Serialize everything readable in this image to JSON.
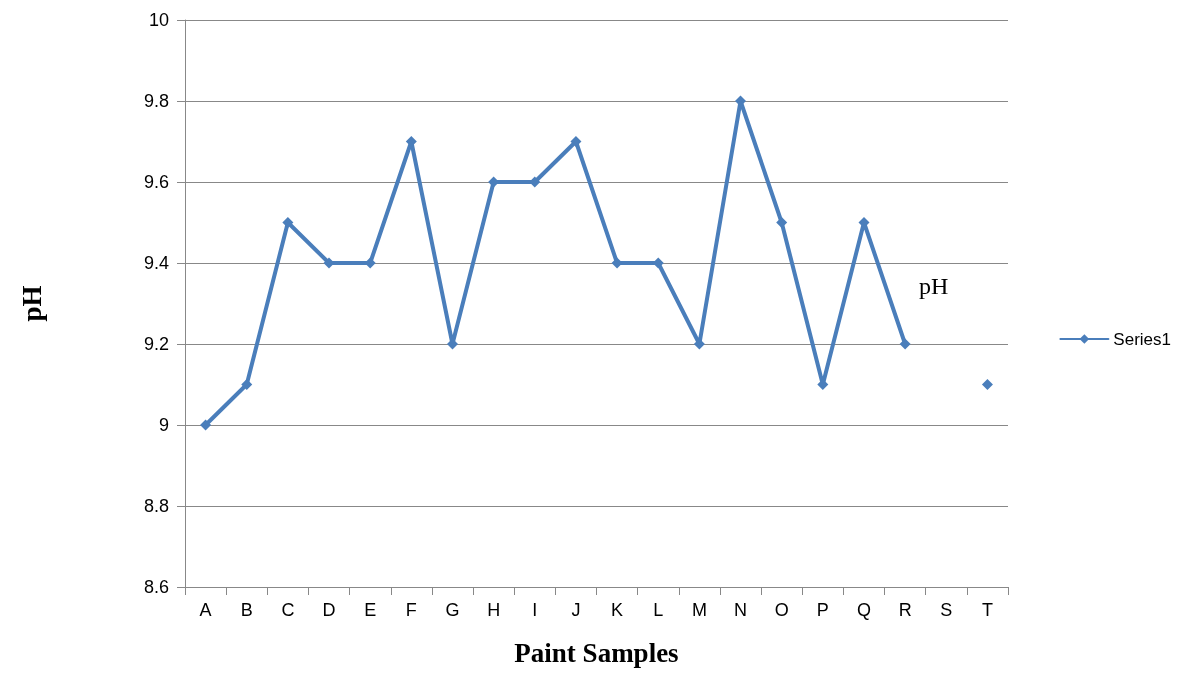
{
  "chart_data": {
    "type": "line",
    "xlabel": "Paint Samples",
    "ylabel": "pH",
    "categories": [
      "A",
      "B",
      "C",
      "D",
      "E",
      "F",
      "G",
      "H",
      "I",
      "J",
      "K",
      "L",
      "M",
      "N",
      "O",
      "P",
      "Q",
      "R",
      "S",
      "T"
    ],
    "series": [
      {
        "name": "Series1",
        "color": "#4a7ebb",
        "values": [
          9.0,
          9.1,
          9.5,
          9.4,
          9.4,
          9.7,
          9.2,
          9.6,
          9.6,
          9.7,
          9.4,
          9.4,
          9.2,
          9.8,
          9.5,
          9.1,
          9.5,
          9.2,
          null,
          9.1
        ]
      }
    ],
    "ylim": [
      8.6,
      10
    ],
    "yticks": [
      8.6,
      8.8,
      9,
      9.2,
      9.4,
      9.6,
      9.8,
      10
    ],
    "grid": "y",
    "legend": "right",
    "marker": "diamond",
    "line_style": "solid",
    "annotations": [
      "pH"
    ]
  }
}
